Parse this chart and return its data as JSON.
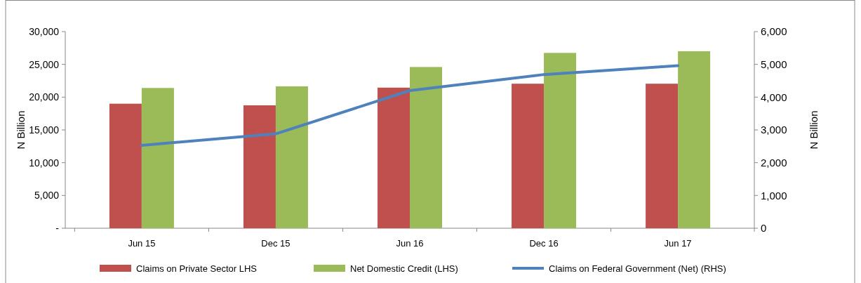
{
  "chart_data": {
    "type": "bar",
    "categories": [
      "Jun 15",
      "Dec 15",
      "Jun 16",
      "Dec 16",
      "Jun 17"
    ],
    "series": [
      {
        "name": "Claims on Private Sector LHS",
        "color": "#c0504d",
        "values": [
          19000,
          18750,
          21450,
          22050,
          22050
        ]
      },
      {
        "name": "Net Domestic Credit (LHS)",
        "color": "#9bbb59",
        "values": [
          21400,
          21650,
          24600,
          26750,
          27000
        ]
      },
      {
        "name": "Claims on Federal Government (Net) (RHS)",
        "type": "line",
        "axis": "y2",
        "color": "#4f81bd",
        "values": [
          2530,
          2880,
          4200,
          4690,
          4960
        ]
      }
    ],
    "ylabel": "N Billion",
    "y2label": "N Billion",
    "ylim": [
      0,
      30000
    ],
    "yticks": [
      {
        "value": 0,
        "label": "-"
      },
      {
        "value": 5000,
        "label": "5,000"
      },
      {
        "value": 10000,
        "label": "10,000"
      },
      {
        "value": 15000,
        "label": "15,000"
      },
      {
        "value": 20000,
        "label": "20,000"
      },
      {
        "value": 25000,
        "label": "25,000"
      },
      {
        "value": 30000,
        "label": "30,000"
      }
    ],
    "y2lim": [
      0,
      6000
    ],
    "y2ticks": [
      0,
      {
        "value": 1000,
        "label": "1,000"
      },
      {
        "value": 2000,
        "label": "2,000"
      },
      {
        "value": 3000,
        "label": "3,000"
      },
      {
        "value": 4000,
        "label": "4,000"
      },
      {
        "value": 5000,
        "label": "5,000"
      },
      {
        "value": 6000,
        "label": "6,000"
      }
    ],
    "legend": "bottom"
  }
}
